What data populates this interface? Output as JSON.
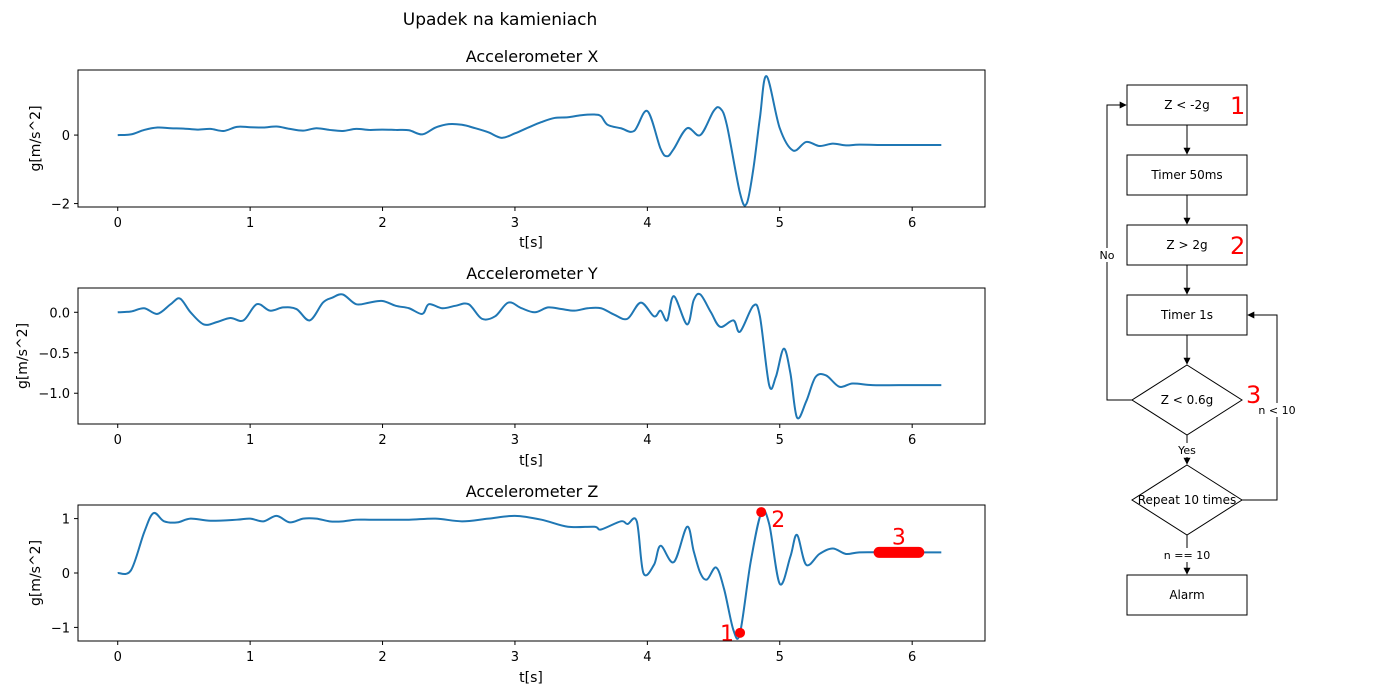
{
  "figure": {
    "title": "Upadek na kamieniach"
  },
  "chart_data": [
    {
      "type": "line",
      "title": "Accelerometer X",
      "xlabel": "t[s]",
      "ylabel": "g[m/s^2]",
      "xlim": [
        -0.3,
        6.55
      ],
      "ylim": [
        -2.1,
        1.9
      ],
      "xticks": [
        0,
        1,
        2,
        3,
        4,
        5,
        6
      ],
      "yticks": [
        0,
        -2
      ],
      "ytick_labels": [
        "0",
        "−2"
      ],
      "color": "#1f77b4",
      "x": [
        0,
        0.1,
        0.2,
        0.3,
        0.4,
        0.5,
        0.6,
        0.7,
        0.8,
        0.9,
        1.0,
        1.1,
        1.2,
        1.3,
        1.4,
        1.5,
        1.6,
        1.7,
        1.8,
        1.9,
        2.0,
        2.1,
        2.2,
        2.3,
        2.4,
        2.5,
        2.6,
        2.7,
        2.8,
        2.9,
        3.0,
        3.1,
        3.2,
        3.3,
        3.4,
        3.5,
        3.6,
        3.65,
        3.7,
        3.8,
        3.9,
        4.0,
        4.1,
        4.15,
        4.2,
        4.3,
        4.4,
        4.5,
        4.55,
        4.6,
        4.7,
        4.75,
        4.8,
        4.85,
        4.9,
        5.0,
        5.1,
        5.2,
        5.3,
        5.4,
        5.5,
        5.6,
        5.8,
        6.0,
        6.22
      ],
      "y": [
        0,
        0.02,
        0.15,
        0.22,
        0.2,
        0.19,
        0.16,
        0.18,
        0.12,
        0.24,
        0.23,
        0.22,
        0.25,
        0.18,
        0.13,
        0.2,
        0.15,
        0.12,
        0.18,
        0.15,
        0.16,
        0.15,
        0.14,
        0.02,
        0.22,
        0.32,
        0.3,
        0.2,
        0.08,
        -0.08,
        0.05,
        0.22,
        0.38,
        0.5,
        0.52,
        0.58,
        0.6,
        0.55,
        0.3,
        0.2,
        0.12,
        0.7,
        -0.4,
        -0.62,
        -0.4,
        0.2,
        0.0,
        0.7,
        0.78,
        0.3,
        -1.7,
        -2.0,
        -1.0,
        0.5,
        1.72,
        0.2,
        -0.45,
        -0.2,
        -0.32,
        -0.25,
        -0.3,
        -0.28,
        -0.29,
        -0.29,
        -0.29
      ]
    },
    {
      "type": "line",
      "title": "Accelerometer Y",
      "xlabel": "t[s]",
      "ylabel": "g[m/s^2]",
      "xlim": [
        -0.3,
        6.55
      ],
      "ylim": [
        -1.38,
        0.3
      ],
      "xticks": [
        0,
        1,
        2,
        3,
        4,
        5,
        6
      ],
      "yticks": [
        0.0,
        -0.5,
        -1.0
      ],
      "ytick_labels": [
        "0.0",
        "−0.5",
        "−1.0"
      ],
      "color": "#1f77b4",
      "x": [
        0,
        0.1,
        0.2,
        0.3,
        0.4,
        0.47,
        0.55,
        0.65,
        0.75,
        0.85,
        0.95,
        1.05,
        1.15,
        1.25,
        1.35,
        1.45,
        1.55,
        1.62,
        1.7,
        1.8,
        1.9,
        2.0,
        2.1,
        2.2,
        2.3,
        2.35,
        2.45,
        2.55,
        2.65,
        2.75,
        2.85,
        2.95,
        3.05,
        3.15,
        3.25,
        3.35,
        3.45,
        3.55,
        3.65,
        3.75,
        3.85,
        3.95,
        4.05,
        4.1,
        4.15,
        4.2,
        4.3,
        4.35,
        4.4,
        4.48,
        4.55,
        4.65,
        4.7,
        4.8,
        4.85,
        4.92,
        4.97,
        5.03,
        5.08,
        5.13,
        5.2,
        5.27,
        5.35,
        5.45,
        5.55,
        5.7,
        5.9,
        6.22
      ],
      "y": [
        0,
        0.01,
        0.05,
        -0.02,
        0.1,
        0.17,
        0.0,
        -0.15,
        -0.12,
        -0.07,
        -0.1,
        0.1,
        0.02,
        0.06,
        0.04,
        -0.1,
        0.12,
        0.18,
        0.22,
        0.1,
        0.12,
        0.14,
        0.08,
        0.05,
        -0.02,
        0.1,
        0.05,
        0.08,
        0.1,
        -0.08,
        -0.05,
        0.12,
        0.05,
        0.0,
        0.06,
        0.04,
        0.02,
        0.05,
        0.05,
        -0.03,
        -0.08,
        0.12,
        -0.05,
        0.02,
        -0.1,
        0.2,
        -0.15,
        0.15,
        0.22,
        0.0,
        -0.18,
        -0.1,
        -0.24,
        0.08,
        -0.05,
        -0.9,
        -0.8,
        -0.45,
        -0.75,
        -1.3,
        -1.1,
        -0.8,
        -0.78,
        -0.92,
        -0.88,
        -0.9,
        -0.9,
        -0.9
      ]
    },
    {
      "type": "line",
      "title": "Accelerometer Z",
      "xlabel": "t[s]",
      "ylabel": "g[m/s^2]",
      "xlim": [
        -0.3,
        6.55
      ],
      "ylim": [
        -1.25,
        1.25
      ],
      "xticks": [
        0,
        1,
        2,
        3,
        4,
        5,
        6
      ],
      "yticks": [
        1,
        0,
        -1
      ],
      "ytick_labels": [
        "1",
        "0",
        "−1"
      ],
      "color": "#1f77b4",
      "x": [
        0,
        0.1,
        0.2,
        0.27,
        0.35,
        0.45,
        0.55,
        0.7,
        0.9,
        1.0,
        1.1,
        1.2,
        1.3,
        1.4,
        1.5,
        1.6,
        1.7,
        1.8,
        1.9,
        2.0,
        2.2,
        2.4,
        2.6,
        2.8,
        3.0,
        3.2,
        3.4,
        3.6,
        3.65,
        3.8,
        3.85,
        3.92,
        3.97,
        4.05,
        4.1,
        4.2,
        4.3,
        4.35,
        4.4,
        4.45,
        4.52,
        4.58,
        4.65,
        4.7,
        4.78,
        4.86,
        4.92,
        5.0,
        5.08,
        5.13,
        5.2,
        5.3,
        5.4,
        5.5,
        5.6,
        5.8,
        6.0,
        6.22
      ],
      "y": [
        0,
        0.05,
        0.75,
        1.1,
        0.95,
        0.93,
        1.0,
        0.96,
        0.98,
        1.0,
        0.95,
        1.05,
        0.93,
        1.0,
        1.0,
        0.95,
        0.95,
        0.98,
        0.98,
        0.98,
        0.98,
        1.0,
        0.95,
        1.0,
        1.05,
        0.98,
        0.85,
        0.85,
        0.8,
        0.95,
        0.9,
        0.95,
        0.0,
        0.15,
        0.5,
        0.2,
        0.85,
        0.4,
        0.0,
        -0.12,
        0.1,
        -0.3,
        -1.05,
        -1.1,
        0.2,
        1.1,
        0.9,
        -0.2,
        0.3,
        0.7,
        0.15,
        0.35,
        0.45,
        0.35,
        0.38,
        0.38,
        0.38,
        0.38
      ],
      "markers": [
        {
          "label": "1",
          "x": 4.7,
          "y": -1.1,
          "color": "#ff0000"
        },
        {
          "label": "2",
          "x": 4.86,
          "y": 1.12,
          "color": "#ff0000"
        },
        {
          "label": "3",
          "x": 5.9,
          "y": 0.38,
          "x_from": 5.75,
          "x_to": 6.05,
          "color": "#ff0000"
        }
      ]
    }
  ],
  "flowchart": {
    "nodes": [
      {
        "id": "z_low",
        "shape": "rect",
        "text": "Z  < -2g",
        "annotation": "1"
      },
      {
        "id": "timer50",
        "shape": "rect",
        "text": "Timer 50ms"
      },
      {
        "id": "z_high",
        "shape": "rect",
        "text": "Z  > 2g",
        "annotation": "2"
      },
      {
        "id": "timer1s",
        "shape": "rect",
        "text": "Timer 1s"
      },
      {
        "id": "z_check",
        "shape": "diamond",
        "text": "Z < 0.6g",
        "annotation": "3"
      },
      {
        "id": "repeat",
        "shape": "diamond",
        "text": "Repeat 10 times"
      },
      {
        "id": "alarm",
        "shape": "rect",
        "text": "Alarm"
      }
    ],
    "edge_labels": {
      "no": "No",
      "yes": "Yes",
      "n_less": "n < 10",
      "n_eq": "n == 10"
    },
    "annotation_color": "#ff0000"
  }
}
